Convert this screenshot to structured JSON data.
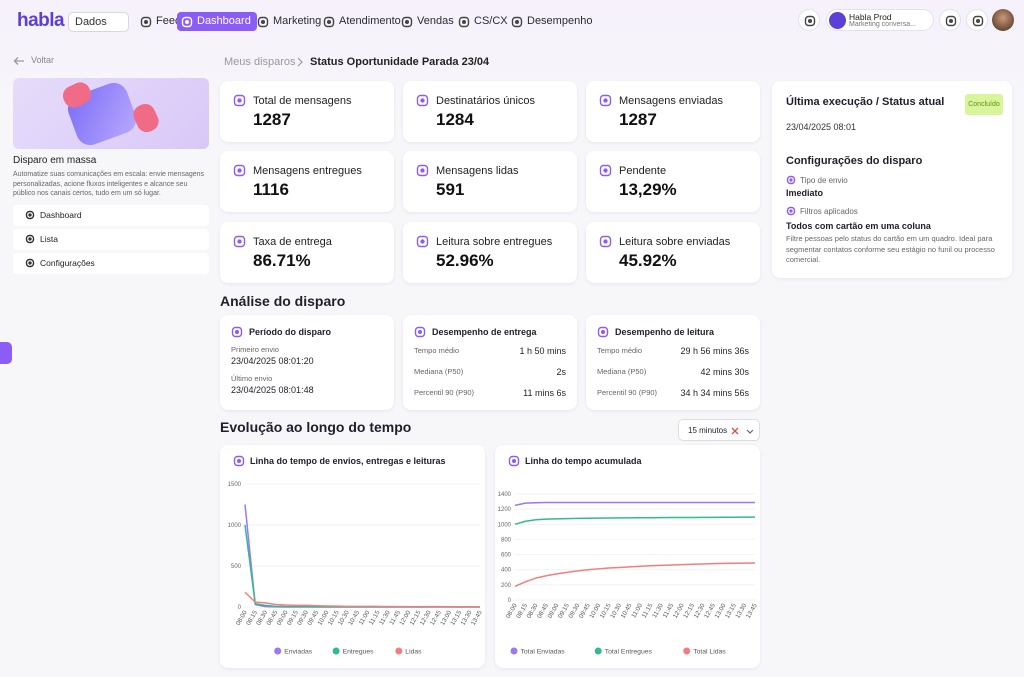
{
  "nav": {
    "logo": "habla",
    "workspace": "Dados",
    "items": [
      "Feed",
      "Dashboard",
      "Marketing",
      "Atendimento",
      "Vendas",
      "CS/CX",
      "Desempenho"
    ],
    "account": {
      "name": "Habla Prod",
      "subtitle": "Marketing conversa..."
    }
  },
  "sidebar": {
    "back": "Voltar",
    "title": "Disparo em massa",
    "description": "Automatize suas comunicações em escala: envie mensagens personalizadas, acione fluxos inteligentes e alcance seu público nos canais certos, tudo em um só lugar.",
    "menu": [
      "Dashboard",
      "Lista",
      "Configurações"
    ]
  },
  "breadcrumb": {
    "parent": "Meus disparos",
    "current": "Status Oportunidade Parada 23/04"
  },
  "stats": [
    {
      "label": "Total de mensagens",
      "value": "1287"
    },
    {
      "label": "Destinatários únicos",
      "value": "1284"
    },
    {
      "label": "Mensagens enviadas",
      "value": "1287"
    },
    {
      "label": "Mensagens entregues",
      "value": "1116"
    },
    {
      "label": "Mensagens lidas",
      "value": "591"
    },
    {
      "label": "Pendente",
      "value": "13,29%"
    },
    {
      "label": "Taxa de entrega",
      "value": "86.71%"
    },
    {
      "label": "Leitura sobre entregues",
      "value": "52.96%"
    },
    {
      "label": "Leitura sobre enviadas",
      "value": "45.92%"
    }
  ],
  "status": {
    "title": "Última execução / Status atual",
    "badge": "Concluído",
    "date": "23/04/2025 08:01",
    "config_title": "Configurações do disparo",
    "send_type_label": "Tipo de envio",
    "send_type": "Imediato",
    "filters_label": "Filtros aplicados",
    "filter_name": "Todos com cartão em uma coluna",
    "filter_description": "Filtre pessoas pelo status do cartão em um quadro. Ideal para segmentar contatos conforme seu estágio no funil ou processo comercial."
  },
  "analysis": {
    "title": "Análise do disparo",
    "period": {
      "title": "Período do disparo",
      "first_label": "Primeiro envio",
      "first": "23/04/2025 08:01:20",
      "last_label": "Último envio",
      "last": "23/04/2025 08:01:48"
    },
    "delivery": {
      "title": "Desempenho de entrega",
      "rows": [
        [
          "Tempo médio",
          "1 h 50 mins"
        ],
        [
          "Mediana (P50)",
          "2s"
        ],
        [
          "Percentil 90 (P90)",
          "11 mins 6s"
        ]
      ]
    },
    "reading": {
      "title": "Desempenho de leitura",
      "rows": [
        [
          "Tempo médio",
          "29 h 56 mins 36s"
        ],
        [
          "Mediana (P50)",
          "42 mins 30s"
        ],
        [
          "Percentil 90 (P90)",
          "34 h 34 mins 56s"
        ]
      ]
    }
  },
  "evolution": {
    "title": "Evolução ao longo do tempo",
    "interval": "15 minutos"
  },
  "chart_data": [
    {
      "type": "line",
      "title": "Linha do tempo de envios, entregas e leituras",
      "categories": [
        "08:00",
        "08:15",
        "08:30",
        "08:45",
        "09:00",
        "09:15",
        "09:30",
        "09:45",
        "10:00",
        "10:15",
        "10:30",
        "10:45",
        "11:00",
        "11:15",
        "11:30",
        "11:45",
        "12:00",
        "12:15",
        "12:30",
        "12:45",
        "13:00",
        "13:15",
        "13:30",
        "13:45"
      ],
      "ylim": [
        0,
        1500
      ],
      "yticks": [
        0,
        500,
        1000,
        1500
      ],
      "grid": true,
      "legend": "bottom",
      "series": [
        {
          "name": "Enviadas",
          "color": "#9a78f2",
          "values": [
            1250,
            30,
            5,
            2,
            0,
            0,
            0,
            0,
            0,
            0,
            0,
            0,
            0,
            0,
            0,
            0,
            0,
            0,
            0,
            0,
            0,
            0,
            0,
            0
          ]
        },
        {
          "name": "Entregues",
          "color": "#34b98e",
          "values": [
            1000,
            40,
            20,
            8,
            4,
            3,
            3,
            2,
            2,
            1,
            1,
            1,
            1,
            1,
            1,
            1,
            1,
            0,
            1,
            1,
            1,
            0,
            1,
            0
          ]
        },
        {
          "name": "Lidas",
          "color": "#f27d7d",
          "values": [
            180,
            60,
            50,
            30,
            25,
            20,
            20,
            15,
            12,
            10,
            8,
            8,
            7,
            7,
            6,
            5,
            5,
            4,
            4,
            4,
            3,
            2,
            2,
            1
          ]
        }
      ]
    },
    {
      "type": "line",
      "title": "Linha do tempo acumulada",
      "categories": [
        "08:00",
        "08:15",
        "08:30",
        "08:45",
        "09:00",
        "09:15",
        "09:30",
        "09:45",
        "10:00",
        "10:15",
        "10:30",
        "10:45",
        "11:00",
        "11:15",
        "11:30",
        "11:45",
        "12:00",
        "12:15",
        "12:30",
        "12:45",
        "13:00",
        "13:15",
        "13:30",
        "13:45"
      ],
      "ylim": [
        0,
        1400
      ],
      "yticks": [
        0,
        200,
        400,
        600,
        800,
        1000,
        1200,
        1400
      ],
      "grid": true,
      "legend": "bottom",
      "series": [
        {
          "name": "Total Enviadas",
          "color": "#9a78f2",
          "values": [
            1250,
            1280,
            1285,
            1287,
            1287,
            1287,
            1287,
            1287,
            1287,
            1287,
            1287,
            1287,
            1287,
            1287,
            1287,
            1287,
            1287,
            1287,
            1287,
            1287,
            1287,
            1287,
            1287,
            1287
          ]
        },
        {
          "name": "Total Entregues",
          "color": "#34b98e",
          "values": [
            1000,
            1040,
            1060,
            1068,
            1072,
            1075,
            1078,
            1080,
            1082,
            1083,
            1084,
            1085,
            1086,
            1087,
            1088,
            1089,
            1090,
            1090,
            1091,
            1092,
            1093,
            1093,
            1094,
            1094
          ]
        },
        {
          "name": "Total Lidas",
          "color": "#f27d7d",
          "values": [
            180,
            240,
            290,
            320,
            345,
            365,
            385,
            400,
            412,
            422,
            430,
            438,
            445,
            452,
            458,
            463,
            468,
            472,
            476,
            480,
            483,
            485,
            487,
            488
          ]
        }
      ]
    }
  ]
}
